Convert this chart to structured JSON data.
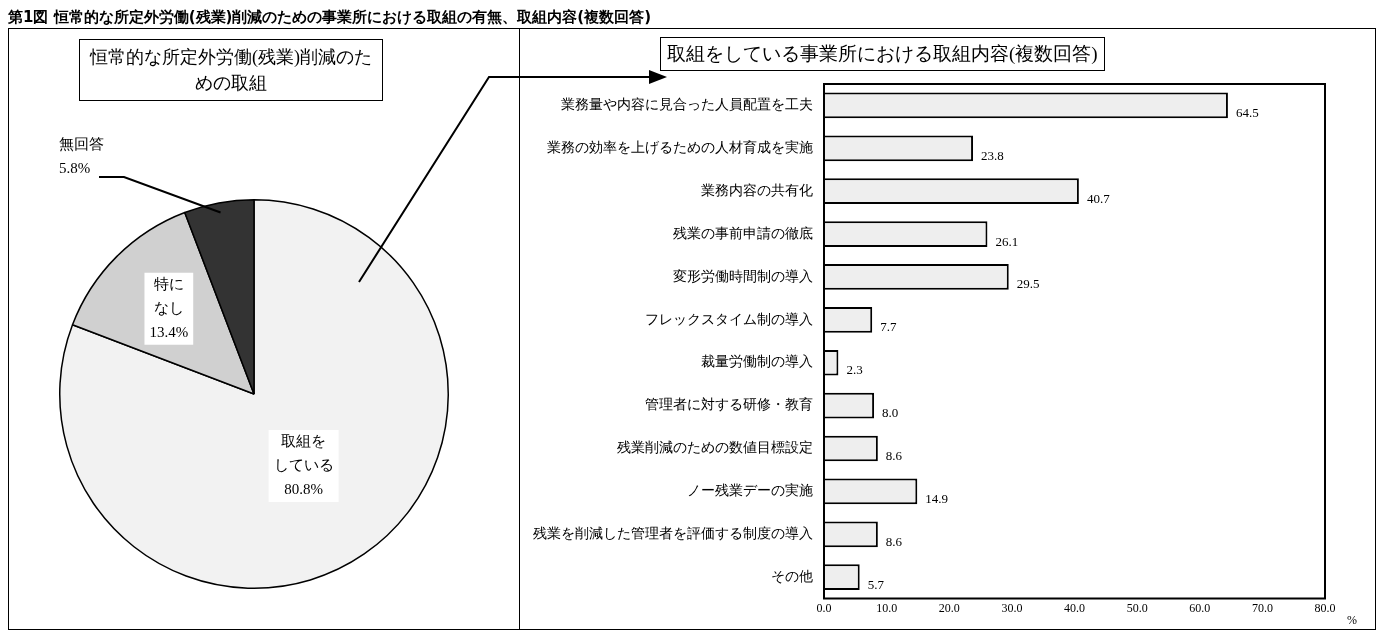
{
  "chart_data": [
    {
      "type": "pie",
      "title": "恒常的な所定外労働(残業)削減のための取組",
      "annotations": [
        "第1図 恒常的な所定外労働(残業)削減のための事業所における取組の有無、取組内容(複数回答)"
      ],
      "categories": [
        "取組をしている",
        "特になし",
        "無回答"
      ],
      "values": [
        80.8,
        13.4,
        5.8
      ],
      "value_labels": [
        "80.8%",
        "13.4%",
        "5.8%"
      ],
      "colors": [
        "#f2f2f2",
        "#d0d0d0",
        "#333333"
      ],
      "legend": false
    },
    {
      "type": "bar",
      "orientation": "horizontal",
      "title": "取組をしている事業所における取組内容(複数回答)",
      "xlabel": "%",
      "categories": [
        "業務量や内容に見合った人員配置を工夫",
        "業務の効率を上げるための人材育成を実施",
        "業務内容の共有化",
        "残業の事前申請の徹底",
        "変形労働時間制の導入",
        "フレックスタイム制の導入",
        "裁量労働制の導入",
        "管理者に対する研修・教育",
        "残業削減のための数値目標設定",
        "ノー残業デーの実施",
        "残業を削減した管理者を評価する制度の導入",
        "その他"
      ],
      "values": [
        64.5,
        23.8,
        40.7,
        26.1,
        29.5,
        7.7,
        2.3,
        8.0,
        8.6,
        14.9,
        8.6,
        5.7
      ],
      "value_labels": [
        "64.5",
        "23.8",
        "40.7",
        "26.1",
        "29.5",
        "7.7",
        "2.3",
        "8.0",
        "8.6",
        "14.9",
        "8.6",
        "5.7"
      ],
      "color": "#eeeeee",
      "xlim": [
        0,
        80
      ],
      "xticks": [
        {
          "value": 0,
          "label": "0.0"
        },
        {
          "value": 10,
          "label": "10.0"
        },
        {
          "value": 20,
          "label": "20.0"
        },
        {
          "value": 30,
          "label": "30.0"
        },
        {
          "value": 40,
          "label": "40.0"
        },
        {
          "value": 50,
          "label": "50.0"
        },
        {
          "value": 60,
          "label": "60.0"
        },
        {
          "value": 70,
          "label": "70.0"
        },
        {
          "value": 80,
          "label": "80.0"
        }
      ],
      "grid": false,
      "legend": false
    }
  ]
}
